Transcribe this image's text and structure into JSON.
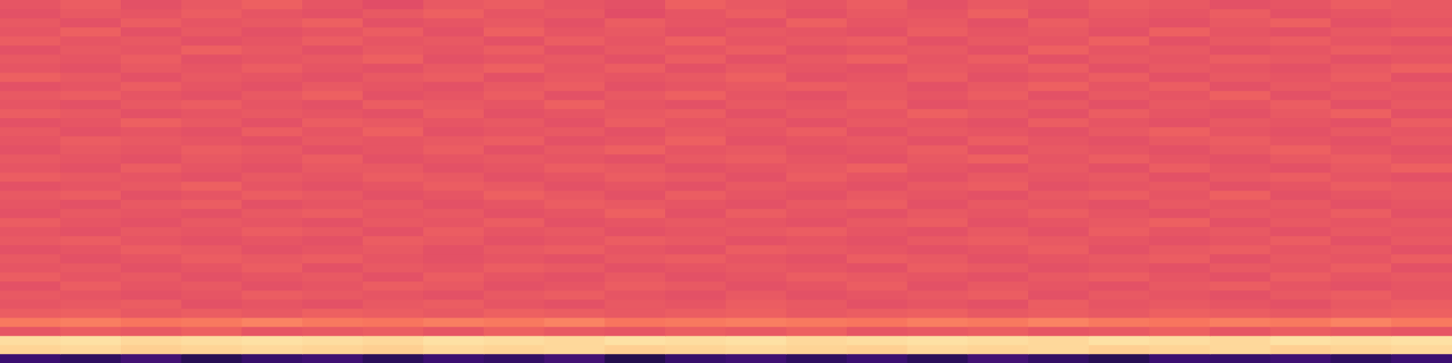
{
  "chart_data": {
    "type": "heatmap",
    "grid": false,
    "tick_labels": false,
    "zlim": [
      0,
      100
    ],
    "cells": [
      [
        63,
        65,
        62,
        64,
        66,
        63,
        61,
        64,
        65,
        63,
        62,
        66,
        64,
        63,
        65,
        62,
        64,
        63,
        65,
        64,
        62,
        63,
        65,
        64
      ],
      [
        62,
        64,
        63,
        65,
        63,
        62,
        64,
        66,
        63,
        64,
        61,
        63,
        65,
        62,
        64,
        63,
        66,
        62,
        64,
        63,
        65,
        62,
        63,
        64
      ],
      [
        64,
        62,
        65,
        63,
        64,
        66,
        62,
        63,
        64,
        62,
        65,
        63,
        62,
        66,
        63,
        64,
        62,
        65,
        63,
        62,
        64,
        66,
        62,
        63
      ],
      [
        63,
        66,
        62,
        64,
        62,
        63,
        65,
        62,
        66,
        63,
        64,
        62,
        64,
        63,
        62,
        65,
        63,
        64,
        62,
        66,
        63,
        62,
        64,
        65
      ],
      [
        65,
        63,
        64,
        62,
        63,
        65,
        63,
        64,
        62,
        65,
        63,
        66,
        63,
        64,
        65,
        62,
        64,
        63,
        66,
        62,
        64,
        65,
        63,
        62
      ],
      [
        62,
        64,
        63,
        66,
        64,
        62,
        64,
        63,
        65,
        62,
        64,
        63,
        65,
        62,
        63,
        64,
        62,
        66,
        63,
        64,
        62,
        63,
        65,
        64
      ],
      [
        64,
        63,
        65,
        62,
        63,
        64,
        66,
        62,
        63,
        64,
        62,
        65,
        62,
        64,
        66,
        63,
        65,
        62,
        64,
        63,
        65,
        64,
        62,
        63
      ],
      [
        63,
        62,
        64,
        63,
        65,
        63,
        62,
        64,
        66,
        63,
        65,
        62,
        64,
        63,
        62,
        64,
        63,
        65,
        62,
        64,
        63,
        62,
        64,
        66
      ],
      [
        66,
        64,
        62,
        64,
        63,
        62,
        64,
        65,
        62,
        64,
        63,
        64,
        66,
        62,
        63,
        65,
        62,
        63,
        65,
        62,
        64,
        63,
        65,
        62
      ],
      [
        62,
        63,
        65,
        63,
        62,
        64,
        63,
        62,
        64,
        65,
        62,
        63,
        64,
        65,
        64,
        62,
        64,
        66,
        63,
        65,
        62,
        64,
        63,
        64
      ],
      [
        64,
        65,
        63,
        62,
        64,
        66,
        62,
        63,
        65,
        62,
        64,
        66,
        63,
        62,
        64,
        63,
        65,
        62,
        64,
        63,
        66,
        62,
        64,
        63
      ],
      [
        63,
        62,
        64,
        65,
        63,
        62,
        65,
        64,
        63,
        66,
        63,
        62,
        64,
        63,
        65,
        62,
        63,
        64,
        62,
        64,
        63,
        65,
        62,
        64
      ],
      [
        65,
        64,
        62,
        63,
        64,
        63,
        62,
        65,
        62,
        63,
        64,
        65,
        62,
        64,
        63,
        66,
        64,
        62,
        65,
        63,
        62,
        64,
        66,
        62
      ],
      [
        62,
        63,
        66,
        64,
        62,
        65,
        64,
        63,
        64,
        62,
        65,
        63,
        64,
        62,
        64,
        63,
        62,
        65,
        63,
        62,
        64,
        63,
        62,
        65
      ],
      [
        64,
        62,
        63,
        62,
        65,
        63,
        66,
        62,
        63,
        64,
        62,
        64,
        63,
        65,
        62,
        64,
        63,
        62,
        64,
        66,
        63,
        62,
        64,
        63
      ],
      [
        63,
        65,
        64,
        63,
        62,
        64,
        63,
        64,
        65,
        62,
        63,
        66,
        62,
        63,
        64,
        62,
        65,
        63,
        62,
        64,
        65,
        63,
        62,
        64
      ],
      [
        62,
        64,
        63,
        65,
        64,
        62,
        63,
        65,
        62,
        64,
        66,
        63,
        64,
        62,
        63,
        65,
        62,
        64,
        63,
        62,
        64,
        66,
        63,
        62
      ],
      [
        64,
        63,
        62,
        64,
        63,
        65,
        62,
        63,
        64,
        63,
        62,
        64,
        65,
        63,
        62,
        64,
        66,
        63,
        65,
        63,
        62,
        64,
        65,
        63
      ],
      [
        63,
        62,
        65,
        63,
        62,
        64,
        64,
        62,
        63,
        65,
        64,
        62,
        63,
        64,
        66,
        63,
        62,
        64,
        62,
        65,
        63,
        62,
        64,
        66
      ],
      [
        65,
        64,
        63,
        62,
        64,
        63,
        65,
        64,
        62,
        63,
        65,
        64,
        62,
        65,
        63,
        62,
        64,
        63,
        64,
        62,
        64,
        65,
        63,
        62
      ],
      [
        62,
        63,
        64,
        66,
        63,
        62,
        63,
        65,
        64,
        62,
        63,
        62,
        64,
        63,
        62,
        64,
        65,
        62,
        63,
        64,
        62,
        63,
        65,
        64
      ],
      [
        64,
        65,
        62,
        63,
        65,
        64,
        62,
        63,
        66,
        64,
        62,
        65,
        63,
        62,
        64,
        63,
        62,
        64,
        65,
        63,
        66,
        62,
        63,
        64
      ],
      [
        63,
        62,
        64,
        65,
        62,
        63,
        64,
        62,
        63,
        65,
        64,
        63,
        62,
        64,
        65,
        62,
        64,
        63,
        62,
        64,
        63,
        64,
        62,
        63
      ],
      [
        62,
        64,
        63,
        62,
        64,
        65,
        63,
        64,
        62,
        63,
        66,
        62,
        65,
        63,
        62,
        64,
        63,
        65,
        63,
        62,
        64,
        63,
        65,
        62
      ],
      [
        65,
        63,
        62,
        64,
        63,
        62,
        64,
        63,
        65,
        62,
        63,
        64,
        63,
        62,
        64,
        65,
        62,
        63,
        64,
        66,
        62,
        64,
        63,
        64
      ],
      [
        63,
        62,
        64,
        63,
        65,
        64,
        62,
        65,
        63,
        64,
        62,
        63,
        64,
        65,
        63,
        62,
        64,
        62,
        65,
        63,
        64,
        62,
        64,
        63
      ],
      [
        64,
        65,
        63,
        62,
        63,
        62,
        65,
        64,
        62,
        63,
        65,
        64,
        62,
        63,
        62,
        64,
        65,
        64,
        63,
        62,
        63,
        65,
        62,
        64
      ],
      [
        62,
        63,
        65,
        64,
        62,
        63,
        64,
        62,
        64,
        65,
        63,
        62,
        65,
        64,
        63,
        62,
        63,
        65,
        62,
        64,
        65,
        63,
        64,
        62
      ],
      [
        64,
        62,
        63,
        65,
        64,
        65,
        63,
        62,
        63,
        62,
        64,
        65,
        63,
        62,
        65,
        64,
        62,
        63,
        64,
        65,
        62,
        64,
        63,
        65
      ],
      [
        63,
        64,
        62,
        63,
        65,
        62,
        64,
        63,
        65,
        64,
        62,
        63,
        64,
        63,
        62,
        65,
        64,
        62,
        63,
        62,
        64,
        63,
        65,
        62
      ],
      [
        65,
        63,
        64,
        62,
        63,
        64,
        62,
        65,
        63,
        62,
        64,
        62,
        63,
        65,
        64,
        63,
        62,
        64,
        65,
        63,
        62,
        65,
        63,
        64
      ],
      [
        62,
        65,
        63,
        64,
        62,
        63,
        65,
        64,
        62,
        63,
        65,
        64,
        62,
        63,
        65,
        62,
        64,
        63,
        62,
        64,
        65,
        63,
        62,
        63
      ],
      [
        64,
        63,
        62,
        63,
        65,
        64,
        63,
        62,
        64,
        65,
        63,
        62,
        64,
        62,
        63,
        64,
        65,
        62,
        64,
        63,
        62,
        64,
        65,
        63
      ],
      [
        63,
        64,
        65,
        62,
        63,
        62,
        64,
        65,
        63,
        62,
        64,
        63,
        65,
        64,
        62,
        63,
        62,
        65,
        63,
        64,
        63,
        62,
        64,
        65
      ],
      [
        65,
        66,
        64,
        65,
        64,
        66,
        65,
        64,
        66,
        65,
        64,
        65,
        66,
        64,
        65,
        66,
        64,
        65,
        64,
        66,
        65,
        64,
        65,
        66
      ],
      [
        72,
        73,
        71,
        72,
        74,
        72,
        71,
        73,
        72,
        74,
        71,
        72,
        73,
        72,
        71,
        73,
        72,
        74,
        72,
        71,
        73,
        72,
        74,
        72
      ],
      [
        63,
        65,
        64,
        66,
        63,
        64,
        65,
        63,
        66,
        64,
        63,
        65,
        64,
        66,
        63,
        64,
        65,
        63,
        64,
        66,
        63,
        65,
        64,
        63
      ],
      [
        93,
        94,
        92,
        93,
        94,
        93,
        92,
        94,
        93,
        92,
        94,
        93,
        94,
        92,
        93,
        94,
        93,
        92,
        94,
        93,
        92,
        94,
        93,
        94
      ],
      [
        91,
        92,
        90,
        91,
        92,
        91,
        90,
        92,
        91,
        92,
        90,
        91,
        92,
        91,
        90,
        92,
        91,
        92,
        90,
        91,
        92,
        90,
        91,
        92
      ],
      [
        20,
        17,
        22,
        15,
        19,
        21,
        16,
        20,
        18,
        22,
        14,
        19,
        21,
        17,
        20,
        16,
        22,
        18,
        15,
        20,
        19,
        21,
        17,
        20
      ]
    ]
  }
}
